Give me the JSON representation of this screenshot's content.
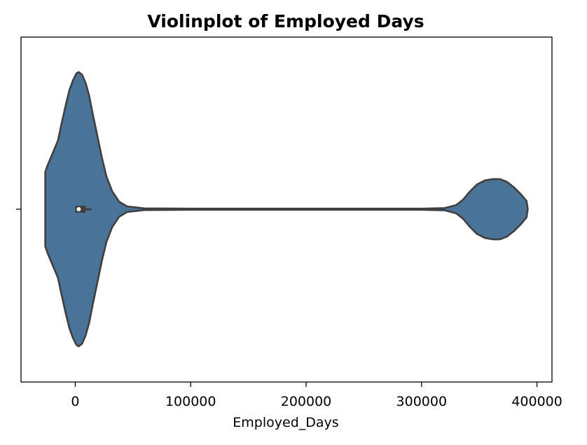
{
  "chart_data": {
    "type": "violin",
    "title": "Violinplot of Employed Days",
    "xlabel": "Employed_Days",
    "ylabel": "",
    "xlim": [
      -47000,
      413000
    ],
    "xticks": [
      0,
      100000,
      200000,
      300000,
      400000
    ],
    "xtick_labels": [
      "0",
      "100000",
      "200000",
      "300000",
      "400000"
    ],
    "orientation": "horizontal",
    "grid": false,
    "colors": {
      "fill": "#4a7398",
      "edge": "#3f3f3f",
      "median": "#ffffff"
    },
    "density_profile": [
      {
        "x": -26000,
        "w": 0.27
      },
      {
        "x": -24000,
        "w": 0.32
      },
      {
        "x": -20000,
        "w": 0.4
      },
      {
        "x": -15000,
        "w": 0.5
      },
      {
        "x": -12000,
        "w": 0.62
      },
      {
        "x": -8000,
        "w": 0.77
      },
      {
        "x": -5000,
        "w": 0.87
      },
      {
        "x": -2000,
        "w": 0.94
      },
      {
        "x": 1000,
        "w": 0.99
      },
      {
        "x": 3000,
        "w": 1.0
      },
      {
        "x": 6000,
        "w": 0.98
      },
      {
        "x": 9000,
        "w": 0.92
      },
      {
        "x": 12000,
        "w": 0.83
      },
      {
        "x": 15000,
        "w": 0.7
      },
      {
        "x": 19000,
        "w": 0.54
      },
      {
        "x": 23000,
        "w": 0.38
      },
      {
        "x": 27000,
        "w": 0.24
      },
      {
        "x": 32000,
        "w": 0.13
      },
      {
        "x": 38000,
        "w": 0.055
      },
      {
        "x": 45000,
        "w": 0.02
      },
      {
        "x": 60000,
        "w": 0.006
      },
      {
        "x": 100000,
        "w": 0.004
      },
      {
        "x": 200000,
        "w": 0.004
      },
      {
        "x": 300000,
        "w": 0.004
      },
      {
        "x": 320000,
        "w": 0.008
      },
      {
        "x": 330000,
        "w": 0.03
      },
      {
        "x": 336000,
        "w": 0.07
      },
      {
        "x": 342000,
        "w": 0.13
      },
      {
        "x": 348000,
        "w": 0.18
      },
      {
        "x": 355000,
        "w": 0.21
      },
      {
        "x": 362000,
        "w": 0.22
      },
      {
        "x": 368000,
        "w": 0.22
      },
      {
        "x": 374000,
        "w": 0.2
      },
      {
        "x": 380000,
        "w": 0.16
      },
      {
        "x": 386000,
        "w": 0.11
      },
      {
        "x": 391000,
        "w": 0.06
      },
      {
        "x": 392000,
        "w": 0.0
      }
    ],
    "box": {
      "q1": 0,
      "median": 3000,
      "q3": 9000,
      "whisker_low": 0,
      "whisker_high": 14000
    }
  }
}
